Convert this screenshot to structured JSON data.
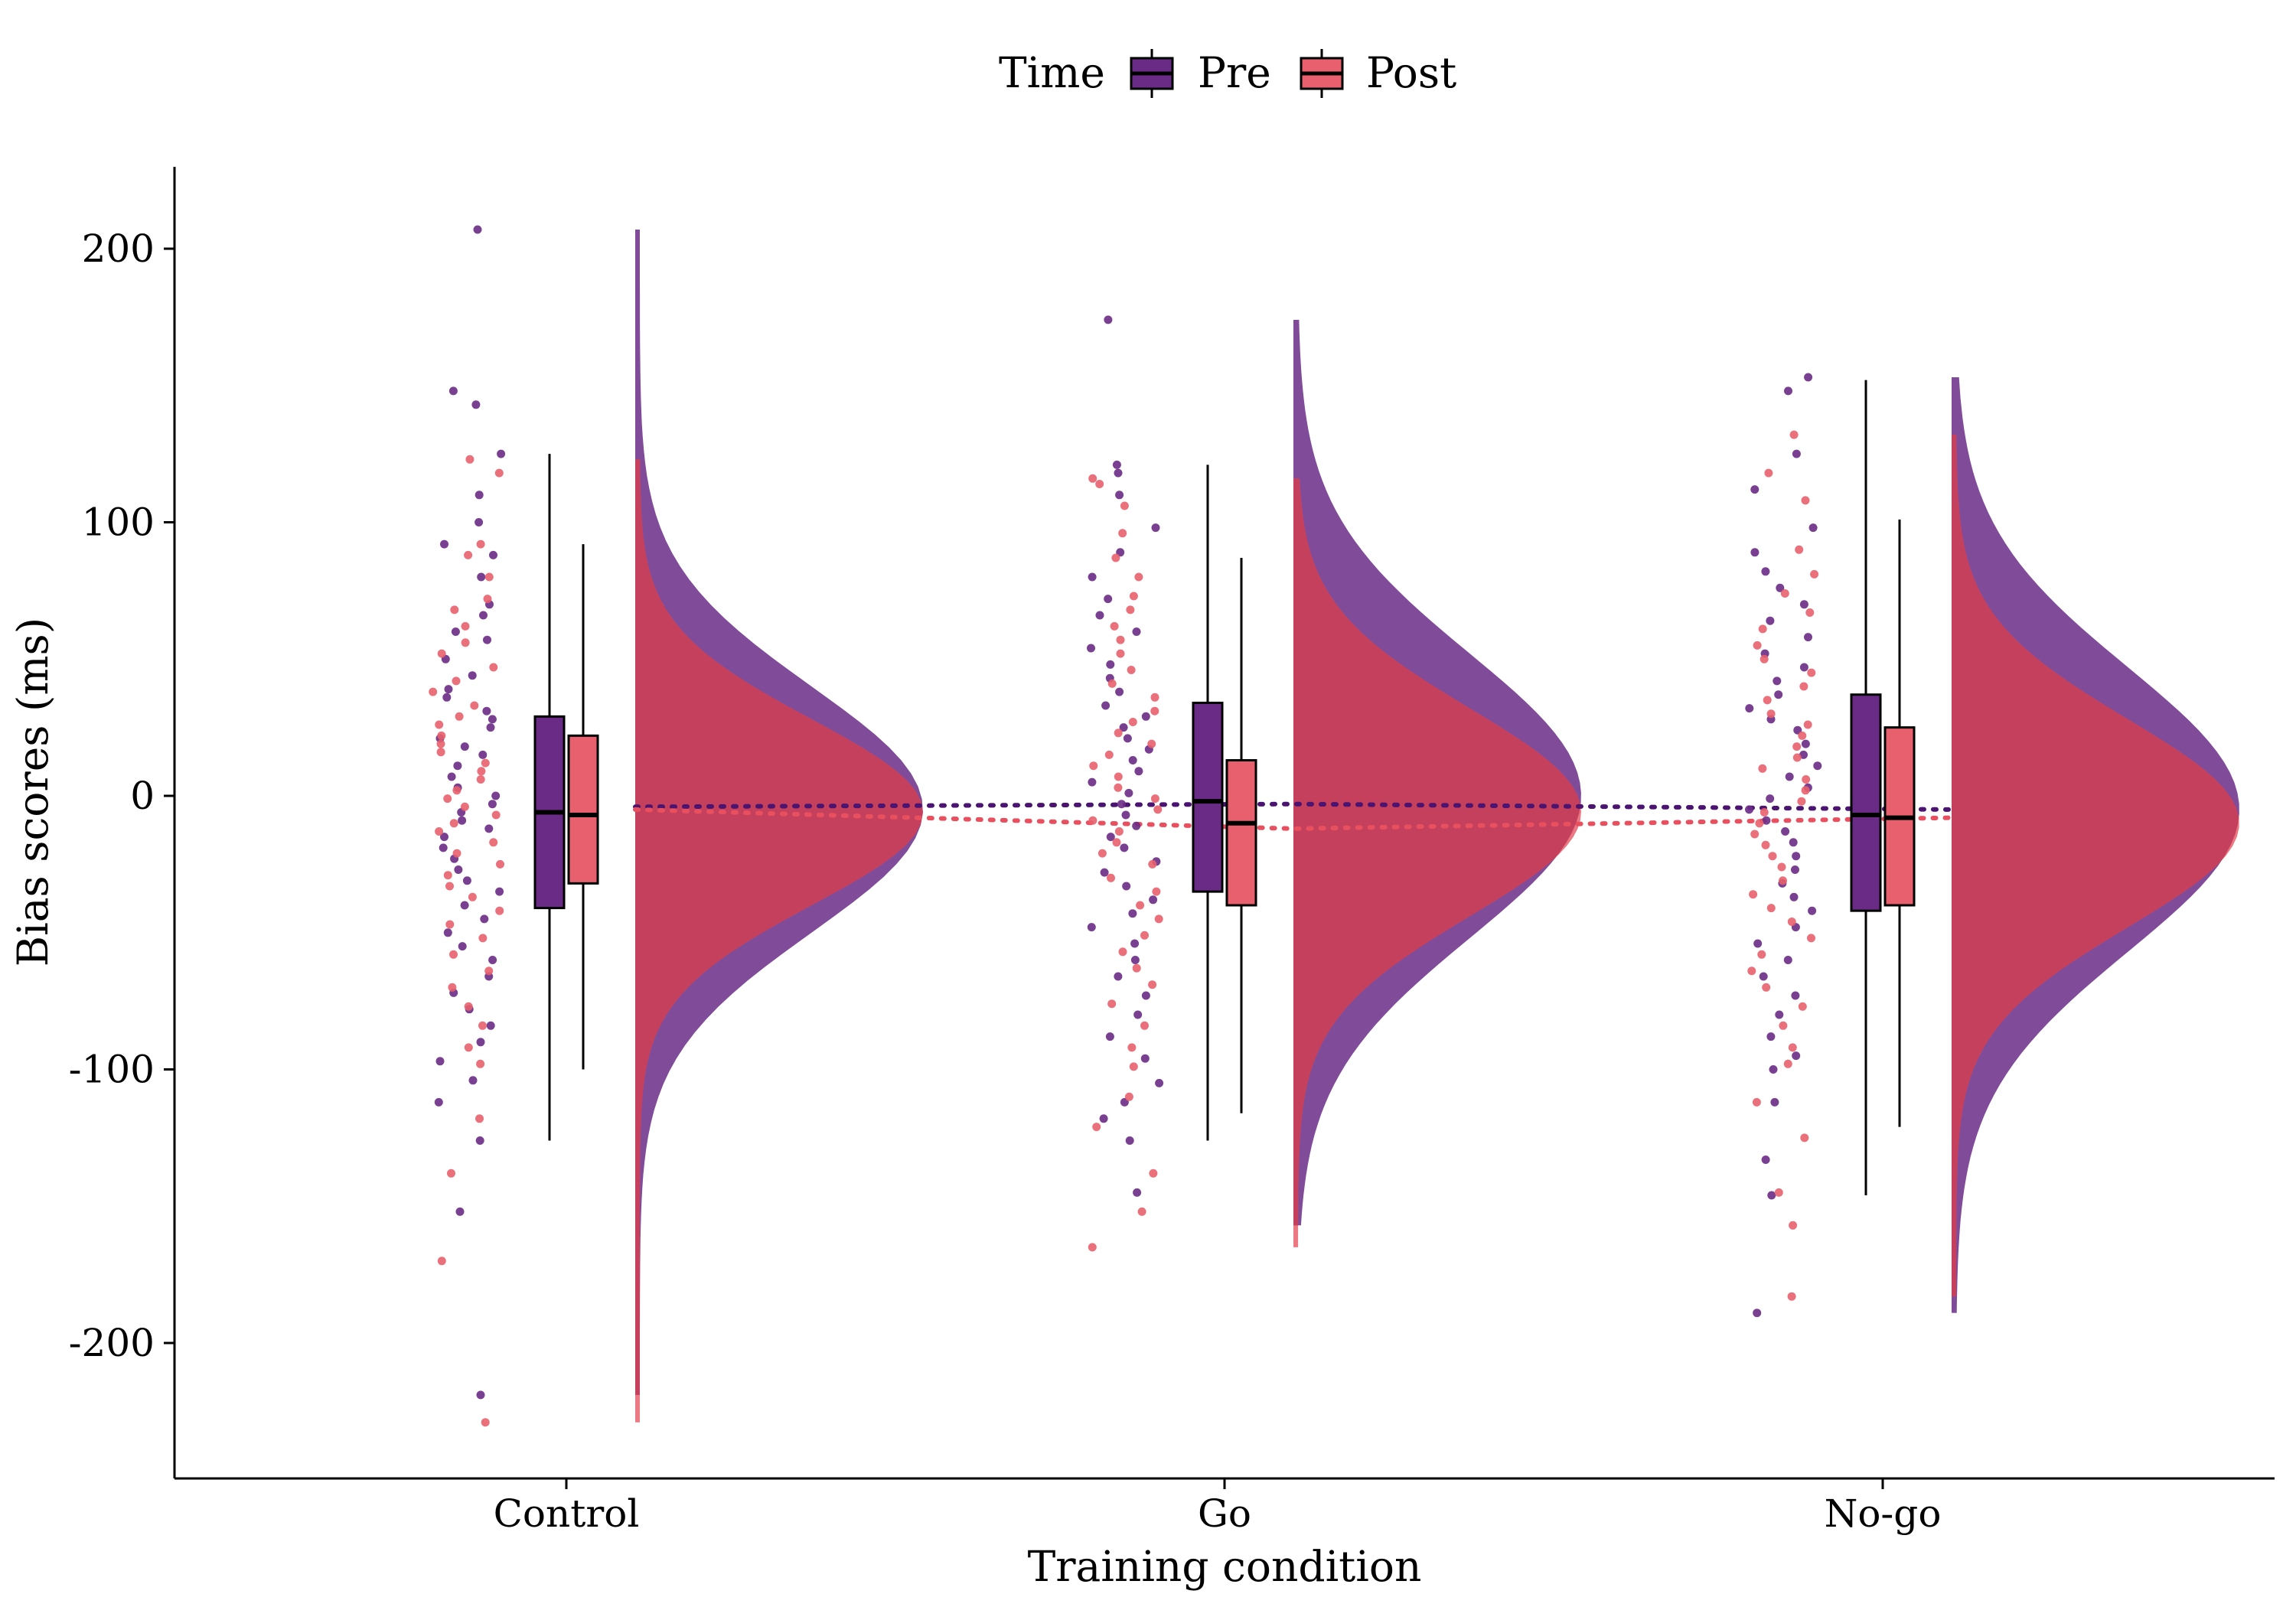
{
  "chart_data": {
    "type": "raincloud",
    "xlabel": "Training condition",
    "ylabel": "Bias scores (ms)",
    "ylim": [
      -252,
      228
    ],
    "yticks": [
      200,
      100,
      0,
      -100,
      -200
    ],
    "ytick_labels": [
      "200",
      "100",
      "0",
      "-100",
      "-200"
    ],
    "categories": [
      "Control",
      "Go",
      "No-go"
    ],
    "legend": {
      "title": "Time",
      "position": "top",
      "entries": [
        "Pre",
        "Post"
      ]
    },
    "colors": {
      "Pre": "#6a2b86",
      "Post": "#e8606d",
      "overlap": "#c5405c",
      "pre_line": "#4a1470",
      "post_line": "#e8505f"
    },
    "series": [
      {
        "name": "Pre",
        "summaries": [
          {
            "category": "Control",
            "whisker_low": -126,
            "q1": -41,
            "median": -6,
            "q3": 29,
            "whisker_high": 125,
            "mean": -4,
            "density_mode": -5,
            "density_sd": 45,
            "range": [
              -219,
              207
            ]
          },
          {
            "category": "Go",
            "whisker_low": -126,
            "q1": -35,
            "median": -2,
            "q3": 34,
            "whisker_high": 121,
            "mean": -3,
            "density_mode": 0,
            "density_sd": 52,
            "range": [
              -157,
              174
            ]
          },
          {
            "category": "No-go",
            "whisker_low": -146,
            "q1": -42,
            "median": -7,
            "q3": 37,
            "whisker_high": 152,
            "mean": -5,
            "density_mode": -5,
            "density_sd": 52,
            "range": [
              -189,
              153
            ]
          }
        ],
        "points": [
          {
            "category": "Control",
            "y": [
              207,
              148,
              143,
              125,
              110,
              100,
              92,
              88,
              80,
              70,
              66,
              60,
              57,
              50,
              44,
              39,
              36,
              31,
              28,
              25,
              21,
              18,
              15,
              11,
              7,
              3,
              0,
              -3,
              -6,
              -9,
              -12,
              -15,
              -19,
              -23,
              -27,
              -31,
              -35,
              -40,
              -45,
              -50,
              -55,
              -60,
              -66,
              -72,
              -78,
              -84,
              -90,
              -97,
              -104,
              -112,
              -126,
              -152,
              -219
            ]
          },
          {
            "category": "Go",
            "y": [
              174,
              121,
              118,
              110,
              98,
              89,
              80,
              72,
              66,
              60,
              54,
              48,
              43,
              38,
              33,
              29,
              25,
              21,
              17,
              13,
              9,
              5,
              1,
              -3,
              -7,
              -11,
              -15,
              -19,
              -24,
              -28,
              -33,
              -38,
              -43,
              -48,
              -54,
              -60,
              -66,
              -73,
              -80,
              -88,
              -96,
              -105,
              -112,
              -118,
              -126,
              -145
            ]
          },
          {
            "category": "No-go",
            "y": [
              153,
              148,
              125,
              112,
              98,
              89,
              82,
              76,
              70,
              64,
              58,
              52,
              47,
              42,
              37,
              32,
              28,
              24,
              19,
              15,
              11,
              7,
              3,
              -1,
              -5,
              -9,
              -13,
              -17,
              -22,
              -27,
              -32,
              -37,
              -42,
              -48,
              -54,
              -60,
              -66,
              -73,
              -80,
              -88,
              -95,
              -100,
              -112,
              -133,
              -146,
              -189
            ]
          }
        ]
      },
      {
        "name": "Post",
        "summaries": [
          {
            "category": "Control",
            "whisker_low": -100,
            "q1": -32,
            "median": -7,
            "q3": 22,
            "whisker_high": 92,
            "mean": -5,
            "density_mode": -6,
            "density_sd": 34,
            "range": [
              -229,
              123
            ]
          },
          {
            "category": "Go",
            "whisker_low": -116,
            "q1": -40,
            "median": -10,
            "q3": 13,
            "whisker_high": 87,
            "mean": -12,
            "density_mode": -6,
            "density_sd": 38,
            "range": [
              -165,
              116
            ]
          },
          {
            "category": "No-go",
            "whisker_low": -121,
            "q1": -40,
            "median": -8,
            "q3": 25,
            "whisker_high": 101,
            "mean": -8,
            "density_mode": -10,
            "density_sd": 38,
            "range": [
              -183,
              132
            ]
          }
        ],
        "points": [
          {
            "category": "Control",
            "y": [
              123,
              118,
              92,
              88,
              80,
              72,
              68,
              62,
              56,
              52,
              47,
              42,
              38,
              33,
              29,
              26,
              22,
              19,
              16,
              12,
              9,
              6,
              2,
              -1,
              -4,
              -7,
              -10,
              -13,
              -17,
              -21,
              -25,
              -29,
              -33,
              -37,
              -42,
              -47,
              -52,
              -58,
              -64,
              -70,
              -77,
              -84,
              -92,
              -98,
              -118,
              -138,
              -170,
              -229
            ]
          },
          {
            "category": "Go",
            "y": [
              116,
              114,
              106,
              96,
              87,
              80,
              73,
              68,
              62,
              57,
              52,
              46,
              41,
              36,
              31,
              27,
              23,
              19,
              15,
              11,
              7,
              3,
              -1,
              -5,
              -9,
              -13,
              -17,
              -21,
              -25,
              -30,
              -35,
              -40,
              -45,
              -51,
              -57,
              -63,
              -69,
              -76,
              -84,
              -92,
              -99,
              -110,
              -121,
              -138,
              -152,
              -165
            ]
          },
          {
            "category": "No-go",
            "y": [
              132,
              118,
              108,
              90,
              81,
              74,
              67,
              61,
              55,
              50,
              45,
              40,
              35,
              30,
              26,
              22,
              18,
              14,
              10,
              6,
              2,
              -2,
              -6,
              -10,
              -14,
              -18,
              -22,
              -26,
              -31,
              -36,
              -41,
              -46,
              -52,
              -58,
              -64,
              -70,
              -77,
              -84,
              -92,
              -98,
              -112,
              -125,
              -145,
              -157,
              -183
            ]
          }
        ]
      }
    ]
  }
}
